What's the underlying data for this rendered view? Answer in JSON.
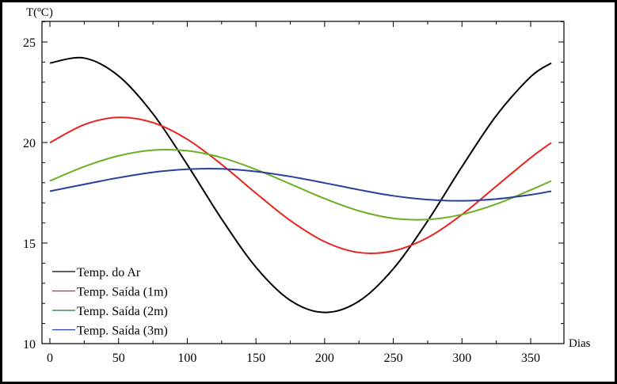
{
  "chart_data": {
    "type": "line",
    "title": "",
    "xlabel": "Dias",
    "ylabel": "T(ºC)",
    "xlim": [
      -6,
      372
    ],
    "ylim": [
      10,
      26.02
    ],
    "xticks": [
      0,
      50,
      100,
      150,
      200,
      250,
      300,
      350
    ],
    "xtick_labels": [
      "0",
      "50",
      "100",
      "150",
      "200",
      "250",
      "300",
      "350"
    ],
    "yticks": [
      10,
      15,
      20,
      25
    ],
    "ytick_labels": [
      "10",
      "15",
      "20",
      "25"
    ],
    "grid": false,
    "legend_position": "bottom-left",
    "x": [
      0,
      25,
      50,
      75,
      100,
      125,
      150,
      175,
      200,
      225,
      250,
      275,
      300,
      325,
      350,
      365
    ],
    "series": [
      {
        "name": "Temp. do Ar",
        "color": "#000000",
        "legend_color": "#000000",
        "values": [
          23.95,
          24.2,
          23.31,
          21.43,
          18.9,
          16.2,
          13.8,
          12.15,
          11.55,
          12.11,
          13.72,
          16.1,
          18.8,
          21.34,
          23.27,
          23.95
        ]
      },
      {
        "name": "Temp. Saída (1m)",
        "color": "#e8231f",
        "legend_color": "#d42020",
        "values": [
          19.99,
          20.89,
          21.25,
          20.99,
          20.16,
          18.91,
          17.48,
          16.12,
          15.07,
          14.53,
          14.61,
          15.27,
          16.42,
          17.83,
          19.24,
          19.99
        ]
      },
      {
        "name": "Temp. Saída (2m)",
        "color": "#6ab023",
        "legend_color": "#1d7a35",
        "values": [
          18.09,
          18.8,
          19.34,
          19.62,
          19.59,
          19.25,
          18.66,
          17.94,
          17.21,
          16.6,
          16.23,
          16.17,
          16.42,
          16.94,
          17.64,
          18.09
        ]
      },
      {
        "name": "Temp. Saída (3m)",
        "color": "#2a3f9a",
        "legend_color": "#2a3f9a",
        "values": [
          17.58,
          17.92,
          18.25,
          18.52,
          18.67,
          18.69,
          18.56,
          18.31,
          17.99,
          17.65,
          17.35,
          17.16,
          17.1,
          17.19,
          17.4,
          17.58
        ]
      }
    ]
  }
}
